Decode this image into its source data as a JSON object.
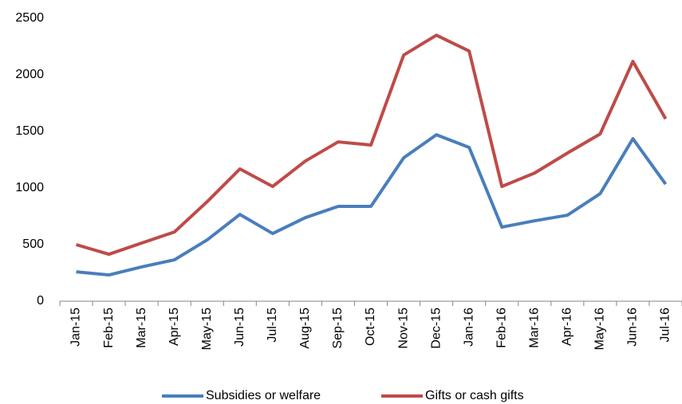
{
  "chart_data": {
    "type": "line",
    "categories": [
      "Jan-15",
      "Feb-15",
      "Mar-15",
      "Apr-15",
      "May-15",
      "Jun-15",
      "Jul-15",
      "Aug-15",
      "Sep-15",
      "Oct-15",
      "Nov-15",
      "Dec-15",
      "Jan-16",
      "Feb-16",
      "Mar-16",
      "Apr-16",
      "May-16",
      "Jun-16",
      "Jul-16"
    ],
    "series": [
      {
        "name": "Subsidies or welfare",
        "color": "#4a7ebb",
        "values": [
          260,
          232,
          303,
          366,
          542,
          767,
          598,
          739,
          838,
          838,
          1267,
          1471,
          1359,
          655,
          711,
          760,
          950,
          1436,
          1035
        ]
      },
      {
        "name": "Gifts or cash gifts",
        "color": "#be4b48",
        "values": [
          500,
          415,
          514,
          612,
          880,
          1169,
          1014,
          1239,
          1408,
          1380,
          2175,
          2351,
          2211,
          1014,
          1133,
          1309,
          1478,
          2119,
          1612
        ]
      }
    ],
    "ylim": [
      0,
      2500
    ],
    "yticks": [
      0,
      500,
      1000,
      1500,
      2000,
      2500
    ],
    "grid": false,
    "legend": "bottom"
  }
}
